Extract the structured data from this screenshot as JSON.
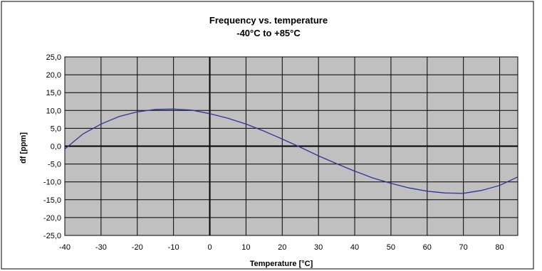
{
  "chart_data": {
    "type": "line",
    "title": "Frequency vs. temperature",
    "subtitle": "-40°C to +85°C",
    "xlabel": "Temperature [°C]",
    "ylabel": "df [ppm]",
    "xlim": [
      -40,
      85
    ],
    "ylim": [
      -25,
      25
    ],
    "x_ticks": [
      -40,
      -30,
      -20,
      -10,
      0,
      10,
      20,
      30,
      40,
      50,
      60,
      70,
      80
    ],
    "x_tick_labels": [
      "-40",
      "-30",
      "-20",
      "-10",
      "0",
      "10",
      "20",
      "30",
      "40",
      "50",
      "60",
      "70",
      "80"
    ],
    "y_ticks": [
      25,
      20,
      15,
      10,
      5,
      0,
      -5,
      -10,
      -15,
      -20,
      -25
    ],
    "y_tick_labels": [
      "25,0",
      "20,0",
      "15,0",
      "10,0",
      "5,0",
      "0,0",
      "-5,0",
      "-10,0",
      "-15,0",
      "-20,0",
      "-25,0"
    ],
    "grid": true,
    "legend": "none",
    "colors": {
      "plot_background": "#c0c0c0",
      "grid": "#000000",
      "line": "#333399"
    },
    "series": [
      {
        "x": [
          -40,
          -35,
          -30,
          -25,
          -20,
          -15,
          -10,
          -5,
          0,
          5,
          10,
          15,
          20,
          25,
          30,
          35,
          40,
          45,
          50,
          55,
          60,
          65,
          70,
          75,
          80,
          85
        ],
        "values": [
          -0.8,
          3.4,
          6.2,
          8.3,
          9.6,
          10.3,
          10.4,
          10.1,
          9.1,
          7.8,
          6.2,
          4.2,
          2.0,
          -0.3,
          -2.7,
          -4.9,
          -7.0,
          -8.9,
          -10.4,
          -11.7,
          -12.6,
          -13.1,
          -13.2,
          -12.4,
          -11.0,
          -8.6
        ]
      }
    ]
  }
}
